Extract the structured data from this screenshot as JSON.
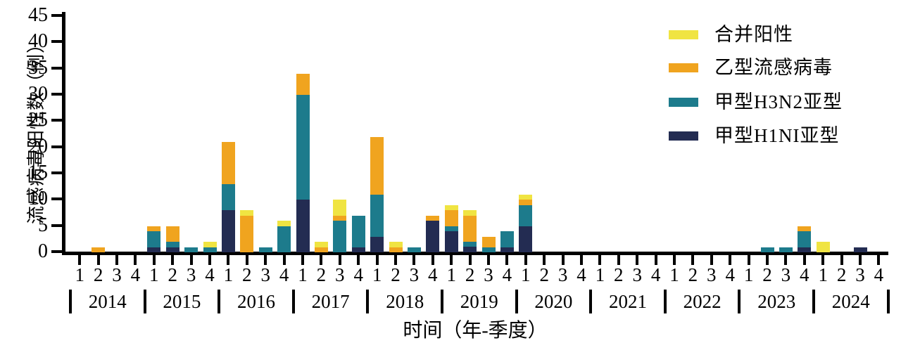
{
  "figure": {
    "y_axis": {
      "title": "流感病毒阳性数（例）",
      "ticks": [
        0,
        5,
        10,
        15,
        20,
        25,
        30,
        35,
        40,
        45
      ]
    },
    "x_axis": {
      "title": "时间（年-季度）",
      "quarter_labels": [
        "1",
        "2",
        "3",
        "4"
      ],
      "years": [
        "2014",
        "2015",
        "2016",
        "2017",
        "2018",
        "2019",
        "2020",
        "2021",
        "2022",
        "2023",
        "2024"
      ]
    },
    "legend": [
      {
        "label": "合并阳性",
        "color": "#f0e442"
      },
      {
        "label": "乙型流感病毒",
        "color": "#f0a41f"
      },
      {
        "label": "甲型H3N2亚型",
        "color": "#1d7b8c"
      },
      {
        "label": "甲型H1NI亚型",
        "color": "#232c52"
      }
    ]
  },
  "chart_data": {
    "type": "bar",
    "stacked": true,
    "grid": false,
    "legend_position": "top-right",
    "xlabel": "时间（年-季度）",
    "ylabel": "流感病毒阳性数（例）",
    "ylim": [
      0,
      45
    ],
    "x_unit": "year-quarter",
    "categories": [
      "2014-1",
      "2014-2",
      "2014-3",
      "2014-4",
      "2015-1",
      "2015-2",
      "2015-3",
      "2015-4",
      "2016-1",
      "2016-2",
      "2016-3",
      "2016-4",
      "2017-1",
      "2017-2",
      "2017-3",
      "2017-4",
      "2018-1",
      "2018-2",
      "2018-3",
      "2018-4",
      "2019-1",
      "2019-2",
      "2019-3",
      "2019-4",
      "2020-1",
      "2020-2",
      "2020-3",
      "2020-4",
      "2021-1",
      "2021-2",
      "2021-3",
      "2021-4",
      "2022-1",
      "2022-2",
      "2022-3",
      "2022-4",
      "2023-1",
      "2023-2",
      "2023-3",
      "2023-4",
      "2024-1",
      "2024-2",
      "2024-3",
      "2024-4"
    ],
    "stack_order_bottom_to_top": [
      "甲型H1NI亚型",
      "甲型H3N2亚型",
      "乙型流感病毒",
      "合并阳性"
    ],
    "series": [
      {
        "name": "甲型H1NI亚型",
        "color": "#232c52",
        "values": [
          0,
          0,
          0,
          0,
          1,
          1,
          0,
          0,
          8,
          0,
          0,
          0,
          10,
          0,
          0,
          1,
          3,
          0,
          0,
          6,
          4,
          1,
          0,
          1,
          5,
          0,
          0,
          0,
          0,
          0,
          0,
          0,
          0,
          0,
          0,
          0,
          0,
          0,
          0,
          1,
          0,
          0,
          1,
          0
        ]
      },
      {
        "name": "甲型H3N2亚型",
        "color": "#1d7b8c",
        "values": [
          0,
          0,
          0,
          0,
          3,
          1,
          1,
          1,
          5,
          0,
          1,
          5,
          20,
          0,
          6,
          6,
          8,
          0,
          1,
          0,
          1,
          1,
          1,
          3,
          4,
          0,
          0,
          0,
          0,
          0,
          0,
          0,
          0,
          0,
          0,
          0,
          0,
          1,
          1,
          3,
          0,
          0,
          0,
          0
        ]
      },
      {
        "name": "乙型流感病毒",
        "color": "#f0a41f",
        "values": [
          0,
          1,
          0,
          0,
          1,
          3,
          0,
          0,
          8,
          7,
          0,
          0,
          4,
          1,
          1,
          0,
          11,
          1,
          0,
          1,
          3,
          5,
          2,
          0,
          1,
          0,
          0,
          0,
          0,
          0,
          0,
          0,
          0,
          0,
          0,
          0,
          0,
          0,
          0,
          1,
          0,
          0,
          0,
          0
        ]
      },
      {
        "name": "合并阳性",
        "color": "#f0e442",
        "values": [
          0,
          0,
          0,
          0,
          0,
          0,
          0,
          1,
          0,
          1,
          0,
          1,
          0,
          1,
          3,
          0,
          0,
          1,
          0,
          0,
          1,
          1,
          0,
          0,
          1,
          0,
          0,
          0,
          0,
          0,
          0,
          0,
          0,
          0,
          0,
          0,
          0,
          0,
          0,
          0,
          2,
          0,
          0,
          0
        ]
      }
    ]
  }
}
